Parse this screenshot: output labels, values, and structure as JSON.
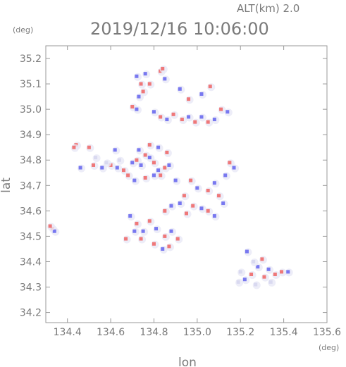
{
  "header": {
    "altitude_label": "ALT(km) 2.0",
    "datetime": "2019/12/16 10:06:00",
    "unit_left": "(deg)",
    "unit_bottom": "(deg)"
  },
  "chart_data": {
    "type": "scatter",
    "xlabel": "lon",
    "ylabel": "lat",
    "xlim": [
      134.3,
      135.6
    ],
    "ylim": [
      34.16,
      35.25
    ],
    "x_ticks": [
      "134.4",
      "134.6",
      "134.8",
      "135.0",
      "135.2",
      "135.4",
      "135.6"
    ],
    "y_ticks": [
      "34.2",
      "34.3",
      "34.4",
      "34.5",
      "34.6",
      "34.7",
      "34.8",
      "34.9",
      "35.0",
      "35.1",
      "35.2"
    ],
    "grid": false,
    "colors": {
      "positive": "#ee6a6a",
      "negative": "#6a6aee",
      "neutral": "#d6d6ee",
      "axis": "#999999"
    },
    "points": [
      [
        134.33,
        34.53,
        "r"
      ],
      [
        134.34,
        34.52,
        "b"
      ],
      [
        134.32,
        34.54,
        "r"
      ],
      [
        134.44,
        34.86,
        "r"
      ],
      [
        134.5,
        34.85,
        "r"
      ],
      [
        134.43,
        34.85,
        "r"
      ],
      [
        134.46,
        34.77,
        "b"
      ],
      [
        134.52,
        34.78,
        "r"
      ],
      [
        134.56,
        34.77,
        "b"
      ],
      [
        134.6,
        34.78,
        "r"
      ],
      [
        134.63,
        34.77,
        "b"
      ],
      [
        134.66,
        34.76,
        "r"
      ],
      [
        134.7,
        34.79,
        "b"
      ],
      [
        134.72,
        34.8,
        "r"
      ],
      [
        134.74,
        34.78,
        "b"
      ],
      [
        134.76,
        34.82,
        "r"
      ],
      [
        134.78,
        34.81,
        "b"
      ],
      [
        134.8,
        34.79,
        "r"
      ],
      [
        134.82,
        34.76,
        "b"
      ],
      [
        134.85,
        34.77,
        "r"
      ],
      [
        134.87,
        34.78,
        "b"
      ],
      [
        134.83,
        34.74,
        "r"
      ],
      [
        134.8,
        34.74,
        "b"
      ],
      [
        134.76,
        34.73,
        "r"
      ],
      [
        134.71,
        34.72,
        "b"
      ],
      [
        134.68,
        34.74,
        "r"
      ],
      [
        134.73,
        34.84,
        "b"
      ],
      [
        134.78,
        34.86,
        "r"
      ],
      [
        134.82,
        34.85,
        "b"
      ],
      [
        134.86,
        34.83,
        "r"
      ],
      [
        134.62,
        34.84,
        "b"
      ],
      [
        134.53,
        34.81,
        "n"
      ],
      [
        134.58,
        34.79,
        "n"
      ],
      [
        134.64,
        34.8,
        "n"
      ],
      [
        134.72,
        35.13,
        "b"
      ],
      [
        134.74,
        35.1,
        "r"
      ],
      [
        134.76,
        35.14,
        "b"
      ],
      [
        134.78,
        35.1,
        "r"
      ],
      [
        134.83,
        35.15,
        "r"
      ],
      [
        134.85,
        35.12,
        "b"
      ],
      [
        134.84,
        35.16,
        "r"
      ],
      [
        134.73,
        35.05,
        "b"
      ],
      [
        134.75,
        35.07,
        "r"
      ],
      [
        134.7,
        35.01,
        "r"
      ],
      [
        134.72,
        35.0,
        "b"
      ],
      [
        134.8,
        34.99,
        "b"
      ],
      [
        134.83,
        34.97,
        "r"
      ],
      [
        134.86,
        34.96,
        "b"
      ],
      [
        134.89,
        34.98,
        "r"
      ],
      [
        134.93,
        34.96,
        "r"
      ],
      [
        134.96,
        34.97,
        "b"
      ],
      [
        134.99,
        34.95,
        "r"
      ],
      [
        135.02,
        34.97,
        "b"
      ],
      [
        135.05,
        34.95,
        "r"
      ],
      [
        135.08,
        34.96,
        "b"
      ],
      [
        135.11,
        35.0,
        "r"
      ],
      [
        135.14,
        34.99,
        "b"
      ],
      [
        134.96,
        35.04,
        "r"
      ],
      [
        135.02,
        35.06,
        "b"
      ],
      [
        135.06,
        35.09,
        "r"
      ],
      [
        134.92,
        35.08,
        "b"
      ],
      [
        134.97,
        34.72,
        "r"
      ],
      [
        135.0,
        34.69,
        "b"
      ],
      [
        135.05,
        34.68,
        "r"
      ],
      [
        135.08,
        34.71,
        "b"
      ],
      [
        135.1,
        34.66,
        "r"
      ],
      [
        135.13,
        34.74,
        "b"
      ],
      [
        135.15,
        34.79,
        "r"
      ],
      [
        135.17,
        34.77,
        "b"
      ],
      [
        134.9,
        34.72,
        "b"
      ],
      [
        134.94,
        34.66,
        "r"
      ],
      [
        134.92,
        34.63,
        "b"
      ],
      [
        134.98,
        34.62,
        "r"
      ],
      [
        135.02,
        34.61,
        "b"
      ],
      [
        135.05,
        34.6,
        "r"
      ],
      [
        135.08,
        34.58,
        "b"
      ],
      [
        134.95,
        34.59,
        "r"
      ],
      [
        134.88,
        34.62,
        "b"
      ],
      [
        134.85,
        34.6,
        "r"
      ],
      [
        135.12,
        34.63,
        "b"
      ],
      [
        134.69,
        34.58,
        "b"
      ],
      [
        134.72,
        34.55,
        "r"
      ],
      [
        134.75,
        34.52,
        "b"
      ],
      [
        134.78,
        34.56,
        "r"
      ],
      [
        134.81,
        34.53,
        "b"
      ],
      [
        134.85,
        34.5,
        "r"
      ],
      [
        134.88,
        34.52,
        "b"
      ],
      [
        134.91,
        34.49,
        "r"
      ],
      [
        134.84,
        34.45,
        "b"
      ],
      [
        134.87,
        34.46,
        "r"
      ],
      [
        134.74,
        34.49,
        "r"
      ],
      [
        134.71,
        34.52,
        "b"
      ],
      [
        134.8,
        34.47,
        "r"
      ],
      [
        134.67,
        34.49,
        "r"
      ],
      [
        135.2,
        34.36,
        "n"
      ],
      [
        135.22,
        34.33,
        "b"
      ],
      [
        135.25,
        34.35,
        "r"
      ],
      [
        135.28,
        34.38,
        "b"
      ],
      [
        135.31,
        34.34,
        "r"
      ],
      [
        135.33,
        34.37,
        "b"
      ],
      [
        135.36,
        34.35,
        "r"
      ],
      [
        135.39,
        34.36,
        "r"
      ],
      [
        135.42,
        34.36,
        "b"
      ],
      [
        135.26,
        34.4,
        "n"
      ],
      [
        135.3,
        34.41,
        "r"
      ],
      [
        135.23,
        34.44,
        "b"
      ],
      [
        135.19,
        34.32,
        "n"
      ],
      [
        135.27,
        34.31,
        "n"
      ],
      [
        135.34,
        34.32,
        "n"
      ]
    ]
  }
}
